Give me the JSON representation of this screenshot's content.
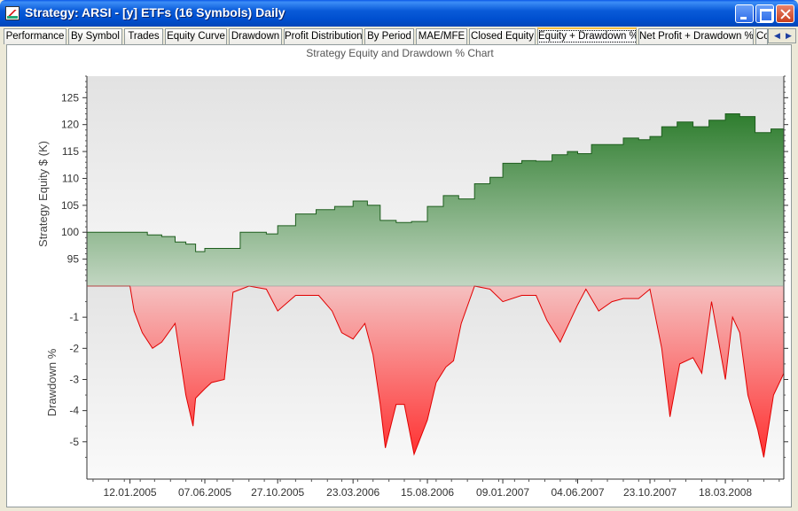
{
  "window": {
    "title": "Strategy: ARSI - [y] ETFs (16 Symbols) Daily"
  },
  "tabs": [
    {
      "label": "Performance",
      "active": false
    },
    {
      "label": "By Symbol",
      "active": false
    },
    {
      "label": "Trades",
      "active": false
    },
    {
      "label": "Equity Curve",
      "active": false
    },
    {
      "label": "Drawdown",
      "active": false
    },
    {
      "label": "Profit Distribution",
      "active": false
    },
    {
      "label": "By Period",
      "active": false
    },
    {
      "label": "MAE/MFE",
      "active": false
    },
    {
      "label": "Closed Equity",
      "active": false
    },
    {
      "label": "Equity + Drawdown %",
      "active": true
    },
    {
      "label": "Net Profit + Drawdown %",
      "active": false
    },
    {
      "label": "Co",
      "active": false
    }
  ],
  "colors": {
    "equity_fill_top": "#2E7D2E",
    "equity_fill_bottom": "#C2D6C2",
    "drawdown_fill_top": "#F5C0C0",
    "drawdown_fill_bottom": "#FF3030",
    "drawdown_line": "#E00000"
  },
  "chart_data": [
    {
      "type": "area",
      "title": "Strategy Equity and Drawdown % Chart",
      "ylabel": "Strategy Equity $ (K)",
      "ylim": [
        90,
        129
      ],
      "yticks": [
        95,
        100,
        105,
        110,
        115,
        120,
        125
      ],
      "x_ticks": [
        "12.01.2005",
        "07.06.2005",
        "27.10.2005",
        "23.03.2006",
        "15.08.2006",
        "09.01.2007",
        "04.06.2007",
        "23.10.2007",
        "18.03.2008"
      ],
      "grid": false,
      "series": [
        {
          "x": [
            "2004-10-20",
            "2005-01-12",
            "2005-02-15",
            "2005-03-15",
            "2005-04-10",
            "2005-05-01",
            "2005-05-20",
            "2005-06-07",
            "2005-07-10",
            "2005-08-15",
            "2005-09-10",
            "2005-10-05",
            "2005-10-27",
            "2005-12-01",
            "2006-01-10",
            "2006-02-15",
            "2006-03-23",
            "2006-04-20",
            "2006-05-15",
            "2006-06-15",
            "2006-07-15",
            "2006-08-15",
            "2006-09-15",
            "2006-10-15",
            "2006-11-15",
            "2006-12-15",
            "2007-01-09",
            "2007-02-15",
            "2007-03-15",
            "2007-04-15",
            "2007-05-15",
            "2007-06-04",
            "2007-07-01",
            "2007-08-01",
            "2007-09-01",
            "2007-10-01",
            "2007-10-23",
            "2007-11-15",
            "2007-12-15",
            "2008-01-15",
            "2008-02-15",
            "2008-03-18",
            "2008-04-15",
            "2008-05-15",
            "2008-06-15",
            "2008-07-10"
          ],
          "values": [
            100,
            100,
            99.5,
            99.2,
            98.2,
            97.8,
            96.4,
            97.0,
            97.0,
            100.0,
            100.0,
            99.7,
            101.2,
            103.4,
            104.2,
            104.8,
            105.8,
            105.0,
            102.2,
            101.8,
            102.0,
            104.8,
            106.8,
            106.2,
            109.0,
            110.2,
            112.8,
            113.3,
            113.2,
            114.4,
            115.0,
            114.6,
            116.3,
            116.3,
            117.5,
            117.2,
            117.8,
            119.6,
            120.5,
            119.6,
            120.8,
            122.0,
            121.5,
            118.5,
            119.2,
            121.5
          ]
        }
      ]
    },
    {
      "type": "area",
      "title": "",
      "ylabel": "Drawdown %",
      "ylim": [
        -6.2,
        0
      ],
      "yticks": [
        -1,
        -2,
        -3,
        -4,
        -5
      ],
      "grid": false,
      "series": [
        {
          "x": [
            "2004-10-20",
            "2005-01-12",
            "2005-01-20",
            "2005-02-05",
            "2005-02-25",
            "2005-03-15",
            "2005-04-10",
            "2005-05-01",
            "2005-05-15",
            "2005-05-20",
            "2005-06-07",
            "2005-06-20",
            "2005-07-15",
            "2005-08-01",
            "2005-09-01",
            "2005-10-05",
            "2005-10-27",
            "2005-12-01",
            "2006-01-15",
            "2006-02-10",
            "2006-03-01",
            "2006-03-23",
            "2006-04-15",
            "2006-05-01",
            "2006-05-15",
            "2006-05-25",
            "2006-06-15",
            "2006-07-01",
            "2006-07-20",
            "2006-08-15",
            "2006-09-01",
            "2006-09-20",
            "2006-10-05",
            "2006-10-20",
            "2006-11-15",
            "2006-12-15",
            "2007-01-09",
            "2007-02-15",
            "2007-03-15",
            "2007-04-05",
            "2007-05-01",
            "2007-06-04",
            "2007-06-20",
            "2007-07-15",
            "2007-08-10",
            "2007-09-01",
            "2007-10-01",
            "2007-10-23",
            "2007-11-15",
            "2007-12-01",
            "2007-12-20",
            "2008-01-15",
            "2008-02-01",
            "2008-02-20",
            "2008-03-18",
            "2008-04-01",
            "2008-04-15",
            "2008-05-01",
            "2008-05-20",
            "2008-06-01",
            "2008-06-20",
            "2008-07-10"
          ],
          "values": [
            0,
            0,
            -0.8,
            -1.5,
            -2.0,
            -1.8,
            -1.2,
            -3.5,
            -4.5,
            -3.6,
            -3.3,
            -3.1,
            -3.0,
            -0.2,
            0,
            -0.1,
            -0.8,
            -0.3,
            -0.3,
            -0.8,
            -1.5,
            -1.7,
            -1.2,
            -2.2,
            -3.8,
            -5.2,
            -3.8,
            -3.8,
            -5.4,
            -4.3,
            -3.1,
            -2.6,
            -2.4,
            -1.2,
            0,
            -0.1,
            -0.5,
            -0.3,
            -0.3,
            -1.1,
            -1.8,
            -0.6,
            -0.1,
            -0.8,
            -0.5,
            -0.4,
            -0.4,
            -0.1,
            -2.0,
            -4.2,
            -2.5,
            -2.3,
            -2.8,
            -0.5,
            -3.0,
            -1.0,
            -1.5,
            -3.5,
            -4.6,
            -5.5,
            -3.5,
            -2.8
          ]
        }
      ]
    }
  ]
}
